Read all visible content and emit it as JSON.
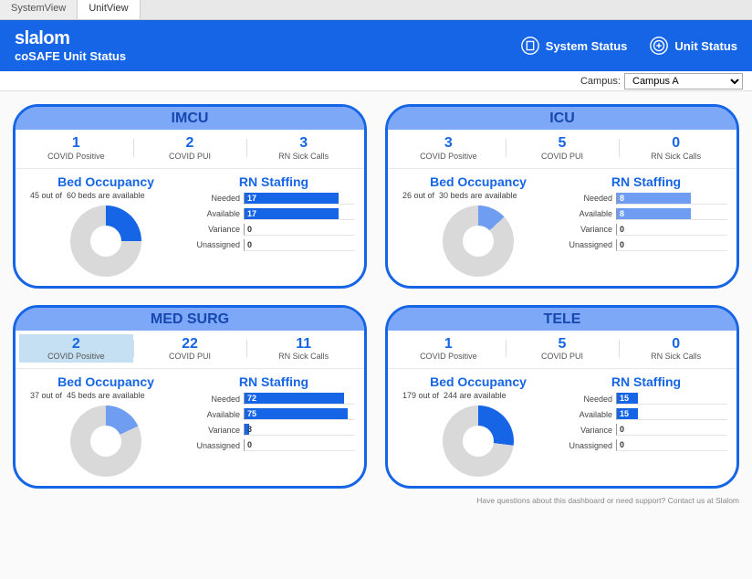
{
  "tabs": [
    {
      "label": "SystemView",
      "active": false
    },
    {
      "label": "UnitView",
      "active": true
    }
  ],
  "header": {
    "logo": "slalom",
    "subtitle": "coSAFE Unit Status",
    "systemStatus": "System Status",
    "unitStatus": "Unit Status"
  },
  "campus": {
    "label": "Campus:",
    "selected": "Campus A"
  },
  "colors": {
    "primary": "#1565e6",
    "secondary": "#6f9df2",
    "track": "#d9d9d9",
    "highlight": "#c5e0f2"
  },
  "labels": {
    "covidPositive": "COVID Positive",
    "covidPUI": "COVID PUI",
    "rnSickCalls": "RN Sick Calls",
    "bedOccupancy": "Bed Occupancy",
    "rnStaffing": "RN Staffing",
    "needed": "Needed",
    "available": "Available",
    "variance": "Variance",
    "unassigned": "Unassigned",
    "outOfA": "out of",
    "outOfB": "beds are available",
    "outOfC": "are available"
  },
  "units": [
    {
      "name": "IMCU",
      "covidPositive": 1,
      "covidPUI": 2,
      "rnSick": 3,
      "highlight": null,
      "bedsAvail": 45,
      "bedsTotal": 60,
      "donut": {
        "pct": 25,
        "color": "#1565e6",
        "track": "#d9d9d9"
      },
      "staff": {
        "needed": 17,
        "available": 17,
        "variance": 0,
        "unassigned": 0,
        "max": 20,
        "barColor": "#1565e6"
      }
    },
    {
      "name": "ICU",
      "covidPositive": 3,
      "covidPUI": 5,
      "rnSick": 0,
      "highlight": null,
      "bedsAvail": 26,
      "bedsTotal": 30,
      "donut": {
        "pct": 13,
        "color": "#6f9df2",
        "track": "#d9d9d9"
      },
      "staff": {
        "needed": 8,
        "available": 8,
        "variance": 0,
        "unassigned": 0,
        "max": 12,
        "barColor": "#6f9df2"
      }
    },
    {
      "name": "MED SURG",
      "covidPositive": 2,
      "covidPUI": 22,
      "rnSick": 11,
      "highlight": "covidPositive",
      "bedsAvail": 37,
      "bedsTotal": 45,
      "donut": {
        "pct": 18,
        "color": "#6f9df2",
        "track": "#d9d9d9"
      },
      "staff": {
        "needed": 72,
        "available": 75,
        "variance": 3,
        "unassigned": 0,
        "max": 80,
        "barColor": "#1565e6"
      }
    },
    {
      "name": "TELE",
      "covidPositive": 1,
      "covidPUI": 5,
      "rnSick": 0,
      "highlight": null,
      "bedsAvail": 179,
      "bedsTotal": 244,
      "noBedsWord": true,
      "donut": {
        "pct": 27,
        "color": "#1565e6",
        "track": "#d9d9d9"
      },
      "staff": {
        "needed": 15,
        "available": 15,
        "variance": 0,
        "unassigned": 0,
        "max": 80,
        "barColor": "#1565e6"
      }
    }
  ],
  "footer": "Have questions about this dashboard or need support? Contact us at Slalom"
}
